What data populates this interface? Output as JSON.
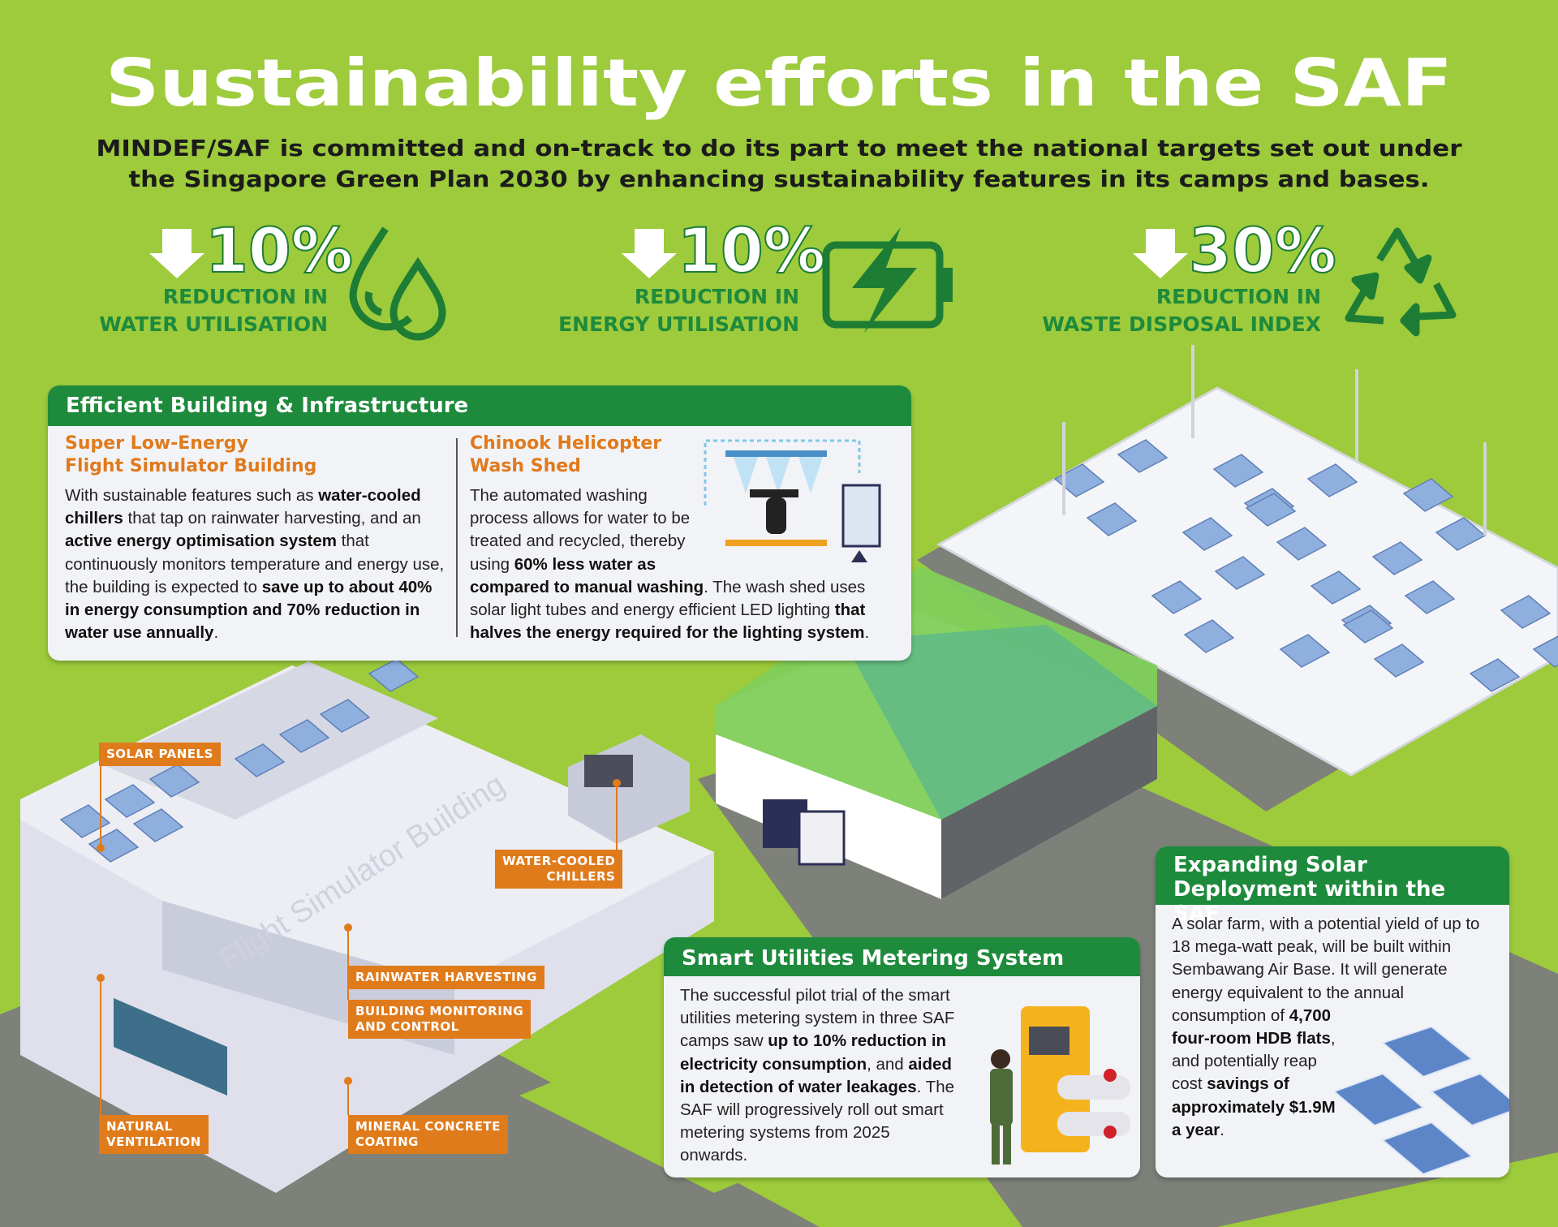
{
  "header": {
    "title": "Sustainability efforts in the SAF",
    "subtitle_lines": [
      "MINDEF/SAF is committed and on-track to do its part to meet the national targets set out under",
      "the Singapore Green Plan 2030 by enhancing sustainability features in its camps and bases."
    ]
  },
  "targets": [
    {
      "figure": "10%",
      "lines": [
        "REDUCTION IN",
        "WATER UTILISATION"
      ]
    },
    {
      "figure": "10%",
      "lines": [
        "REDUCTION IN",
        "ENERGY UTILISATION"
      ]
    },
    {
      "figure": "30%",
      "lines": [
        "REDUCTION IN",
        "WASTE DISPOSAL INDEX"
      ]
    }
  ],
  "infrastructure": {
    "title": "Efficient Building & Infrastructure",
    "items": [
      {
        "heading_lines": [
          "Super Low-Energy",
          "Flight Simulator Building"
        ],
        "segments": [
          "With sustainable features such as ",
          "water-cooled chillers",
          " that tap on rainwater harvesting, and an ",
          "active energy optimisation system",
          " that continuously monitors temperature and energy use, the building is expected to ",
          "save up to about 40% in energy consumption and 70% reduction in water use annually",
          "."
        ]
      },
      {
        "heading_lines": [
          "Chinook Helicopter",
          "Wash Shed"
        ],
        "segments": [
          "The automated washing process allows for water to be treated and recycled, thereby using ",
          "60% less water as compared to manual washing",
          ". The wash shed uses solar light tubes and energy efficient LED lighting ",
          "that halves the energy required for the lighting system",
          "."
        ]
      }
    ]
  },
  "building_name": "Flight Simulator Building",
  "labels": [
    {
      "lines": [
        "SOLAR PANELS"
      ]
    },
    {
      "lines": [
        "WATER-COOLED",
        "CHILLERS"
      ]
    },
    {
      "lines": [
        "RAINWATER HARVESTING"
      ]
    },
    {
      "lines": [
        "BUILDING MONITORING",
        "AND CONTROL"
      ]
    },
    {
      "lines": [
        "NATURAL",
        "VENTILATION"
      ]
    },
    {
      "lines": [
        "MINERAL CONCRETE",
        "COATING"
      ]
    }
  ],
  "metering": {
    "title": "Smart Utilities Metering System",
    "segments": [
      "The successful pilot trial of the smart utilities metering system in three SAF camps saw ",
      "up to 10% reduction in electricity consumption",
      ", and ",
      "aided in detection of water leakages",
      ". The SAF will progressively roll out smart metering systems from 2025 onwards."
    ]
  },
  "solar": {
    "title_lines": [
      "Expanding Solar",
      "Deployment within the SAF"
    ],
    "segments": [
      "A solar farm, with a potential yield of up to 18 mega-watt peak, will be built within Sembawang Air Base. It will generate energy equivalent to the annual consumption of ",
      "4,700 four-room HDB flats",
      ", and potentially reap cost ",
      "savings of approximately $1.9M a year",
      "."
    ]
  }
}
